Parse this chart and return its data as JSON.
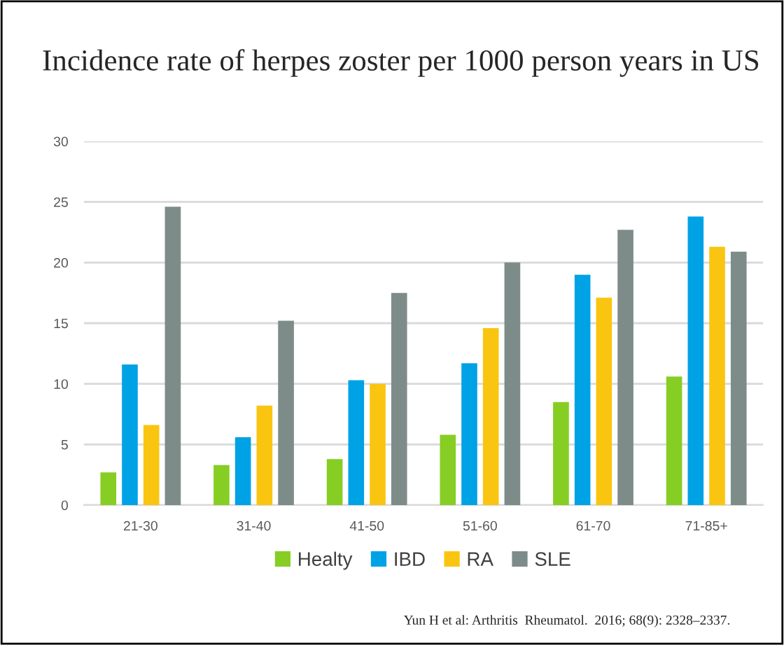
{
  "chart_data": {
    "type": "bar",
    "title": "Incidence rate of herpes zoster per 1000 person years in US",
    "categories": [
      "21-30",
      "31-40",
      "41-50",
      "51-60",
      "61-70",
      "71-85+"
    ],
    "series": [
      {
        "name": "Healty",
        "color": "#86ce24",
        "values": [
          2.7,
          3.3,
          3.8,
          5.8,
          8.5,
          10.6
        ]
      },
      {
        "name": "IBD",
        "color": "#00a2e6",
        "values": [
          11.6,
          5.6,
          10.3,
          11.7,
          19.0,
          23.8
        ]
      },
      {
        "name": "RA",
        "color": "#fac511",
        "values": [
          6.6,
          8.2,
          10.0,
          14.6,
          17.1,
          21.3
        ]
      },
      {
        "name": "SLE",
        "color": "#7d8c89",
        "values": [
          24.6,
          15.2,
          17.5,
          20.0,
          22.7,
          20.9
        ]
      }
    ],
    "ylim": [
      0,
      30
    ],
    "yticks": [
      0,
      5,
      10,
      15,
      20,
      25,
      30
    ],
    "grid": "y",
    "legend": "bottom",
    "annotations": [
      "Yun H et al: Arthritis  Rheumatol.  2016; 68(9): 2328–2337."
    ]
  }
}
